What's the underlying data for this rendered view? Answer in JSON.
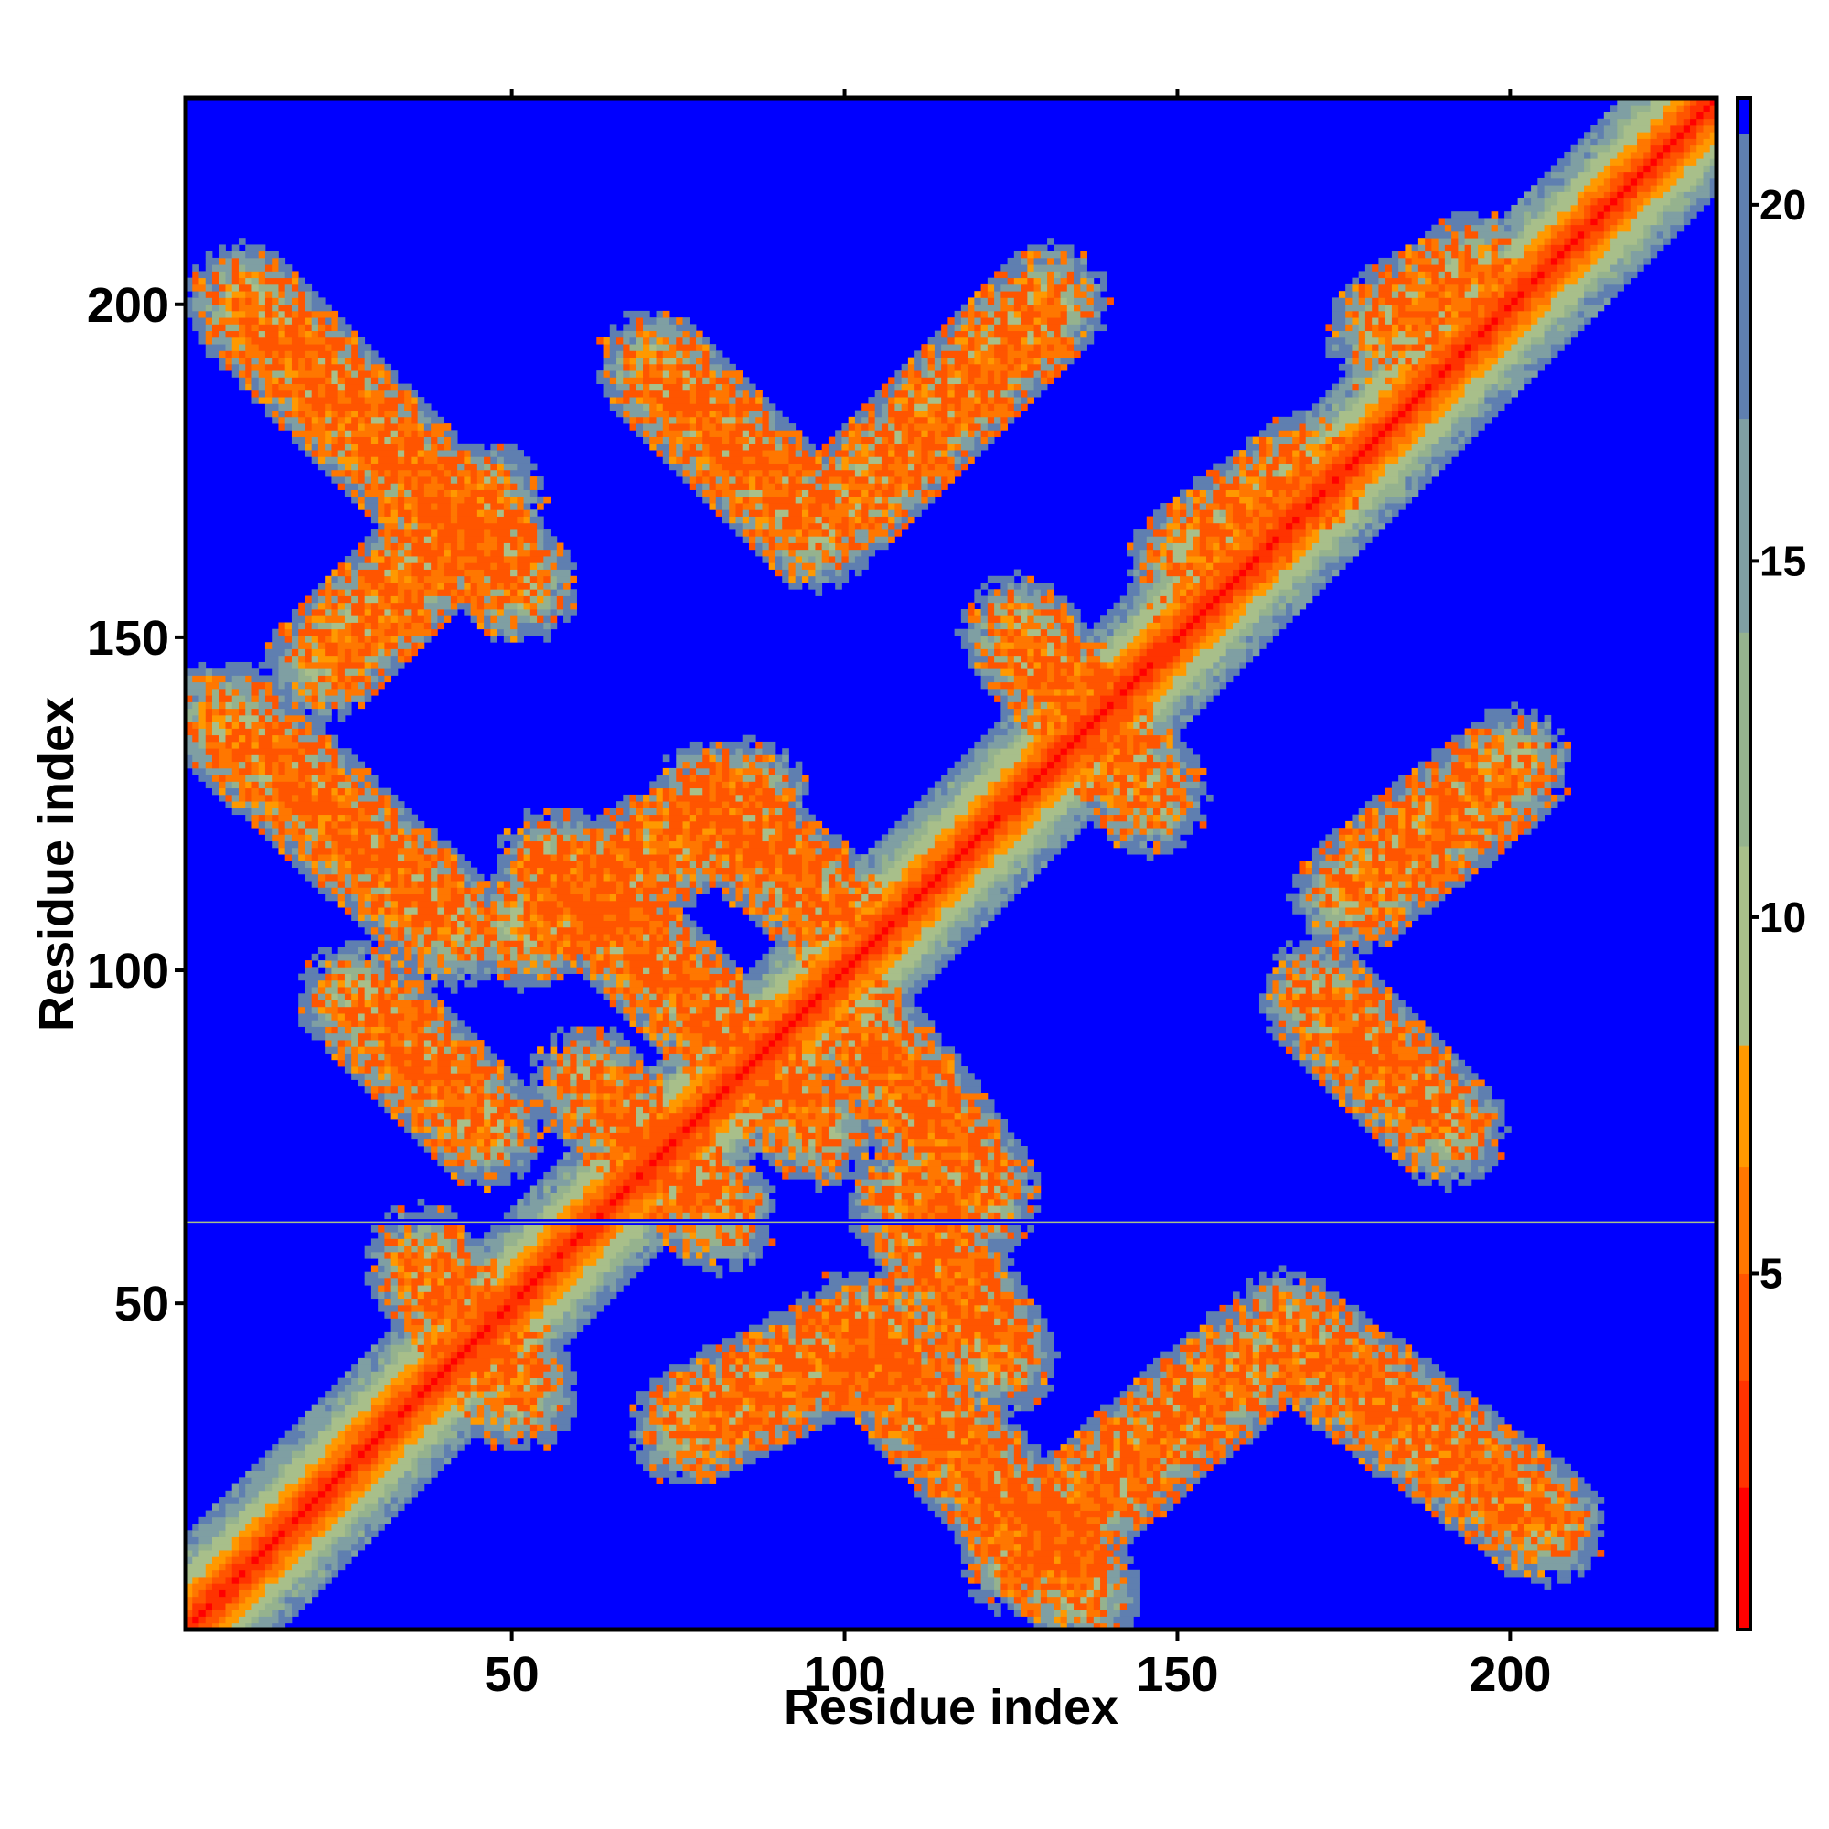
{
  "chart_data": {
    "type": "heatmap",
    "title": "",
    "xlabel": "Residue index",
    "ylabel": "Residue index",
    "xlim": [
      1,
      231
    ],
    "ylim": [
      1,
      231
    ],
    "x_ticks": [
      50,
      100,
      150,
      200
    ],
    "y_ticks": [
      50,
      100,
      150,
      200
    ],
    "x_tick_labels": [
      "50",
      "100",
      "150",
      "200"
    ],
    "y_tick_labels": [
      "50",
      "100",
      "150",
      "200"
    ],
    "colorbar": {
      "range": [
        0,
        21.5
      ],
      "ticks": [
        5,
        10,
        15,
        20
      ],
      "tick_labels": [
        "5",
        "10",
        "15",
        "20"
      ],
      "colors": [
        {
          "from": 0,
          "to": 2,
          "color": "#ff0000"
        },
        {
          "from": 2,
          "to": 3.5,
          "color": "#ff3300"
        },
        {
          "from": 3.5,
          "to": 5,
          "color": "#ff5500"
        },
        {
          "from": 5,
          "to": 6.5,
          "color": "#ff7700"
        },
        {
          "from": 6.5,
          "to": 8.2,
          "color": "#ff9900"
        },
        {
          "from": 8.2,
          "to": 11,
          "color": "#a8bf8a"
        },
        {
          "from": 11,
          "to": 14,
          "color": "#95b28e"
        },
        {
          "from": 14,
          "to": 17,
          "color": "#7f9fa3"
        },
        {
          "from": 17,
          "to": 21.5,
          "color": "#5f7fb0"
        }
      ],
      "background_color": "#0000ff"
    },
    "background_color": "#0000ff",
    "grid": false,
    "legend": "colorbar-right",
    "diagonal": {
      "from": [
        1,
        1
      ],
      "to": [
        231,
        231
      ],
      "core_value": 1
    },
    "contact_bands": [
      {
        "start": [
          5,
          137
        ],
        "end": [
          40,
          105
        ]
      },
      {
        "start": [
          8,
          200
        ],
        "end": [
          50,
          157
        ]
      },
      {
        "start": [
          20,
          145
        ],
        "end": [
          45,
          170
        ]
      },
      {
        "start": [
          55,
          115
        ],
        "end": [
          95,
          75
        ]
      },
      {
        "start": [
          50,
          105
        ],
        "end": [
          85,
          125
        ]
      },
      {
        "start": [
          78,
          125
        ],
        "end": [
          100,
          105
        ]
      },
      {
        "start": [
          70,
          190
        ],
        "end": [
          95,
          165
        ]
      },
      {
        "start": [
          100,
          170
        ],
        "end": [
          130,
          200
        ]
      },
      {
        "start": [
          25,
          95
        ],
        "end": [
          45,
          75
        ]
      },
      {
        "start": [
          60,
          82
        ],
        "end": [
          80,
          62
        ]
      },
      {
        "start": [
          100,
          92
        ],
        "end": [
          120,
          65
        ]
      },
      {
        "start": [
          108,
          65
        ],
        "end": [
          122,
          40
        ]
      },
      {
        "start": [
          75,
          30
        ],
        "end": [
          105,
          45
        ]
      },
      {
        "start": [
          100,
          45
        ],
        "end": [
          135,
          5
        ]
      },
      {
        "start": [
          125,
          10
        ],
        "end": [
          160,
          40
        ]
      },
      {
        "start": [
          165,
          45
        ],
        "end": [
          205,
          15
        ]
      },
      {
        "start": [
          125,
          150
        ],
        "end": [
          145,
          125
        ]
      },
      {
        "start": [
          170,
          95
        ],
        "end": [
          190,
          75
        ]
      },
      {
        "start": [
          175,
          110
        ],
        "end": [
          200,
          130
        ]
      },
      {
        "start": [
          180,
          195
        ],
        "end": [
          195,
          205
        ]
      },
      {
        "start": [
          150,
          160
        ],
        "end": [
          170,
          175
        ]
      },
      {
        "start": [
          35,
          55
        ],
        "end": [
          50,
          35
        ]
      }
    ],
    "missing_row": 62
  }
}
